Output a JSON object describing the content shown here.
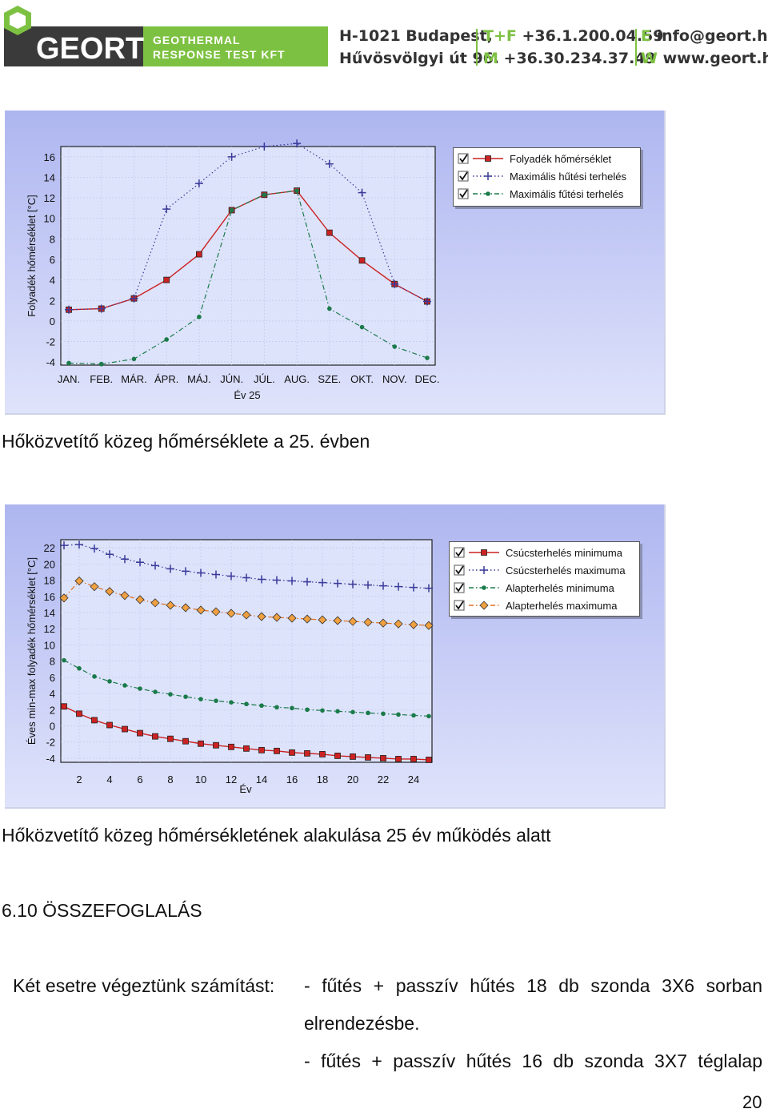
{
  "header": {
    "logo_text": "GEORT",
    "logo_tagline_1": "GEOTHERMAL",
    "logo_tagline_2": "RESPONSE TEST KFT",
    "address_line_1": "H-1021 Budapest,",
    "address_line_2": "Hűvösvölgyi út 96.",
    "phone_label": "T+F",
    "phone": "+36.1.200.04.59",
    "mobile_label": "M",
    "mobile": "+36.30.234.37.49",
    "email_label": "E",
    "email": "info@geort.hu",
    "web_label": "W",
    "web": "www.geort.hu",
    "colors": {
      "accent": "#7dc142",
      "dark": "#3a3a3a"
    }
  },
  "chart_data": [
    {
      "type": "line",
      "ylabel": "Folyadék hőmérséklet [°C]",
      "xlabel": "Év 25",
      "categories": [
        "JAN.",
        "FEB.",
        "MÁR.",
        "ÁPR.",
        "MÁJ.",
        "JÚN.",
        "JÚL.",
        "AUG.",
        "SZE.",
        "OKT.",
        "NOV.",
        "DEC."
      ],
      "yticks": [
        16,
        14,
        12,
        10,
        8,
        6,
        4,
        2,
        0,
        -2,
        -4
      ],
      "ylim": [
        -4.3,
        17
      ],
      "legend_placement": "right",
      "series": [
        {
          "name": "Folyadék hőmérséklet",
          "color": "#cc2222",
          "marker": "square",
          "style": "solid",
          "values": [
            1.1,
            1.2,
            2.2,
            4.0,
            6.5,
            10.8,
            12.3,
            12.7,
            8.6,
            5.9,
            3.6,
            1.9
          ]
        },
        {
          "name": "Maximális hűtési terhelés",
          "color": "#3a3a9a",
          "marker": "plus",
          "style": "dotted",
          "values": [
            1.1,
            1.2,
            2.2,
            10.9,
            13.4,
            16.0,
            17.0,
            17.3,
            15.3,
            12.5,
            3.6,
            1.9
          ]
        },
        {
          "name": "Maximális fűtési terhelés",
          "color": "#1a7a4a",
          "marker": "dot",
          "style": "dashdot",
          "values": [
            -4.1,
            -4.2,
            -3.7,
            -1.8,
            0.4,
            10.8,
            12.3,
            12.7,
            1.2,
            -0.6,
            -2.5,
            -3.6
          ]
        }
      ]
    },
    {
      "type": "line",
      "ylabel": "Éves min-max folyadék hőmérséklet [°C]",
      "xlabel": "Év",
      "xticks": [
        2,
        4,
        6,
        8,
        10,
        12,
        14,
        16,
        18,
        20,
        22,
        24
      ],
      "x": [
        1,
        2,
        3,
        4,
        5,
        6,
        7,
        8,
        9,
        10,
        11,
        12,
        13,
        14,
        15,
        16,
        17,
        18,
        19,
        20,
        21,
        22,
        23,
        24,
        25
      ],
      "yticks": [
        22,
        20,
        18,
        16,
        14,
        12,
        10,
        8,
        6,
        4,
        2,
        0,
        -2,
        -4
      ],
      "ylim": [
        -4.5,
        23
      ],
      "legend_placement": "right",
      "series": [
        {
          "name": "Csúcsterhelés minimuma",
          "color": "#cc2222",
          "marker": "square",
          "style": "solid",
          "values": [
            2.4,
            1.5,
            0.7,
            0.1,
            -0.4,
            -0.9,
            -1.3,
            -1.6,
            -1.9,
            -2.2,
            -2.4,
            -2.6,
            -2.8,
            -3.0,
            -3.1,
            -3.3,
            -3.4,
            -3.5,
            -3.7,
            -3.8,
            -3.9,
            -4.0,
            -4.1,
            -4.1,
            -4.2
          ]
        },
        {
          "name": "Csúcsterhelés maximuma",
          "color": "#3a3a9a",
          "marker": "plus",
          "style": "dotted",
          "values": [
            22.3,
            22.4,
            21.9,
            21.2,
            20.6,
            20.2,
            19.8,
            19.4,
            19.1,
            18.9,
            18.7,
            18.5,
            18.3,
            18.1,
            18.0,
            17.9,
            17.8,
            17.7,
            17.6,
            17.5,
            17.4,
            17.3,
            17.2,
            17.1,
            17.0
          ]
        },
        {
          "name": "Alapterhelés minimuma",
          "color": "#1a7a4a",
          "marker": "dot",
          "style": "dashdot",
          "values": [
            8.1,
            7.1,
            6.1,
            5.5,
            5.0,
            4.6,
            4.2,
            3.9,
            3.6,
            3.3,
            3.1,
            2.9,
            2.7,
            2.5,
            2.3,
            2.2,
            2.0,
            1.9,
            1.8,
            1.7,
            1.6,
            1.5,
            1.4,
            1.3,
            1.2
          ]
        },
        {
          "name": "Alapterhelés maximuma",
          "color": "#e07020",
          "marker": "diamond",
          "style": "dashdot",
          "values": [
            15.8,
            17.9,
            17.2,
            16.6,
            16.1,
            15.6,
            15.2,
            14.9,
            14.6,
            14.3,
            14.1,
            13.9,
            13.7,
            13.5,
            13.4,
            13.3,
            13.2,
            13.1,
            13.0,
            12.9,
            12.8,
            12.7,
            12.6,
            12.5,
            12.4
          ]
        }
      ]
    }
  ],
  "caption_1": "Hőközvetítő közeg hőmérséklete a 25. évben",
  "caption_2": "Hőközvetítő közeg hőmérsékletének alakulása 25 év működés alatt",
  "section_heading": "6.10 ÖSSZEFOGLALÁS",
  "text": {
    "intro": "Két esetre végeztünk számítást:",
    "item1_line1": "- fűtés + passzív hűtés 18 db szonda 3X6 sorban",
    "item1_line2": "elrendezésbe.",
    "item2_line1": "- fűtés + passzív hűtés 16 db szonda 3X7 téglalap"
  },
  "page_number": "20"
}
